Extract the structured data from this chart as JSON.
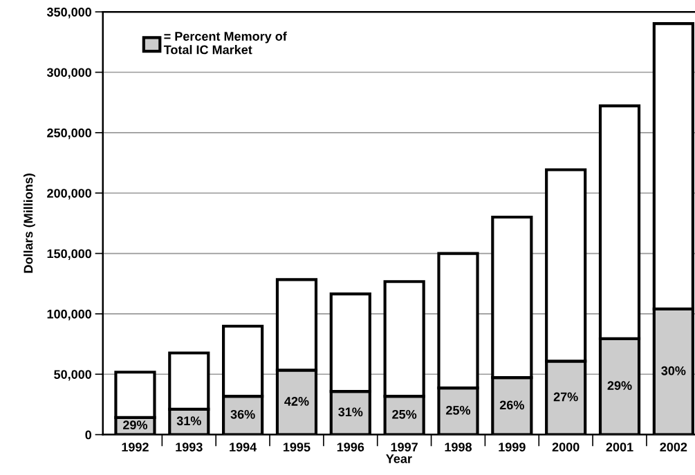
{
  "chart_data": {
    "type": "bar",
    "stacked": true,
    "xlabel": "Year",
    "ylabel": "Dollars (Millions)",
    "categories": [
      "1992",
      "1993",
      "1994",
      "1995",
      "1996",
      "1997",
      "1998",
      "1999",
      "2000",
      "2001",
      "2002"
    ],
    "series": [
      {
        "name": "= Percent Memory of\nTotal IC Market",
        "color": "#cccccc",
        "values": [
          14200,
          21000,
          31800,
          53400,
          35800,
          31800,
          38600,
          47200,
          60800,
          79500,
          104000
        ]
      },
      {
        "color": "#ffffff",
        "values": [
          37500,
          46600,
          58000,
          75000,
          80700,
          94900,
          111400,
          132900,
          158500,
          192700,
          236300
        ]
      }
    ],
    "ylim": [
      0,
      350000
    ],
    "yticks": [
      {
        "value": 0,
        "label": "0"
      },
      {
        "value": 50000,
        "label": "50,000"
      },
      {
        "value": 100000,
        "label": "100,000"
      },
      {
        "value": 150000,
        "label": "150,000"
      },
      {
        "value": 200000,
        "label": "200,000"
      },
      {
        "value": 250000,
        "label": "250,000"
      },
      {
        "value": 300000,
        "label": "300,000"
      },
      {
        "value": 350000,
        "label": "350,000"
      }
    ],
    "annotations": [
      "29%",
      "31%",
      "36%",
      "42%",
      "31%",
      "25%",
      "25%",
      "26%",
      "27%",
      "29%",
      "30%"
    ],
    "grid": "y",
    "legend": "top left"
  }
}
